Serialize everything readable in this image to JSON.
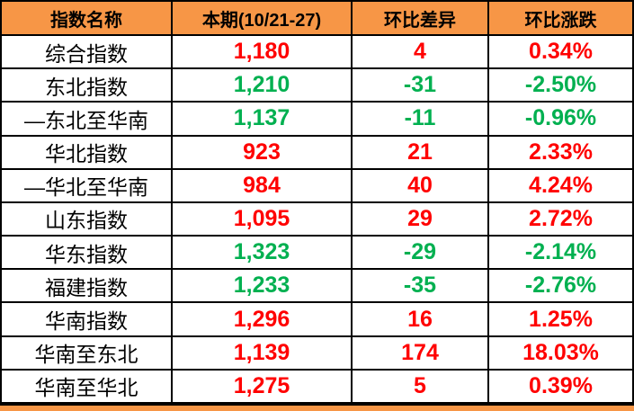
{
  "palette": {
    "header_bg": "#F79646",
    "footer_bg": "#F79646",
    "positive_text": "#FF0000",
    "negative_text": "#00B050",
    "border": "#000000",
    "cell_bg": "#FFFFFF",
    "header_text": "#000000"
  },
  "table": {
    "headers": [
      "指数名称",
      "本期(10/21-27)",
      "环比差异",
      "环比涨跌"
    ],
    "rows": [
      {
        "name": "综合指数",
        "current": "1,180",
        "diff": "4",
        "pct": "0.34%",
        "direction": "up"
      },
      {
        "name": "东北指数",
        "current": "1,210",
        "diff": "-31",
        "pct": "-2.50%",
        "direction": "down"
      },
      {
        "name": "—东北至华南",
        "current": "1,137",
        "diff": "-11",
        "pct": "-0.96%",
        "direction": "down"
      },
      {
        "name": "华北指数",
        "current": "923",
        "diff": "21",
        "pct": "2.33%",
        "direction": "up"
      },
      {
        "name": "—华北至华南",
        "current": "984",
        "diff": "40",
        "pct": "4.24%",
        "direction": "up"
      },
      {
        "name": "山东指数",
        "current": "1,095",
        "diff": "29",
        "pct": "2.72%",
        "direction": "up"
      },
      {
        "name": "华东指数",
        "current": "1,323",
        "diff": "-29",
        "pct": "-2.14%",
        "direction": "down"
      },
      {
        "name": "福建指数",
        "current": "1,233",
        "diff": "-35",
        "pct": "-2.76%",
        "direction": "down"
      },
      {
        "name": "华南指数",
        "current": "1,296",
        "diff": "16",
        "pct": "1.25%",
        "direction": "up"
      },
      {
        "name": "华南至东北",
        "current": "1,139",
        "diff": "174",
        "pct": "18.03%",
        "direction": "up"
      },
      {
        "name": "华南至华北",
        "current": "1,275",
        "diff": "5",
        "pct": "0.39%",
        "direction": "up"
      }
    ]
  },
  "chart_data": {
    "type": "table",
    "title": "",
    "columns": [
      "指数名称",
      "本期(10/21-27)",
      "环比差异",
      "环比涨跌"
    ],
    "rows": [
      [
        "综合指数",
        1180,
        4,
        "0.34%"
      ],
      [
        "东北指数",
        1210,
        -31,
        "-2.50%"
      ],
      [
        "—东北至华南",
        1137,
        -11,
        "-0.96%"
      ],
      [
        "华北指数",
        923,
        21,
        "2.33%"
      ],
      [
        "—华北至华南",
        984,
        40,
        "4.24%"
      ],
      [
        "山东指数",
        1095,
        29,
        "2.72%"
      ],
      [
        "华东指数",
        1323,
        -29,
        "-2.14%"
      ],
      [
        "福建指数",
        1233,
        -35,
        "-2.76%"
      ],
      [
        "华南指数",
        1296,
        16,
        "1.25%"
      ],
      [
        "华南至东北",
        1139,
        174,
        "18.03%"
      ],
      [
        "华南至华北",
        1275,
        5,
        "0.39%"
      ]
    ],
    "notes": "positive values shown in red, negative values shown in green"
  }
}
